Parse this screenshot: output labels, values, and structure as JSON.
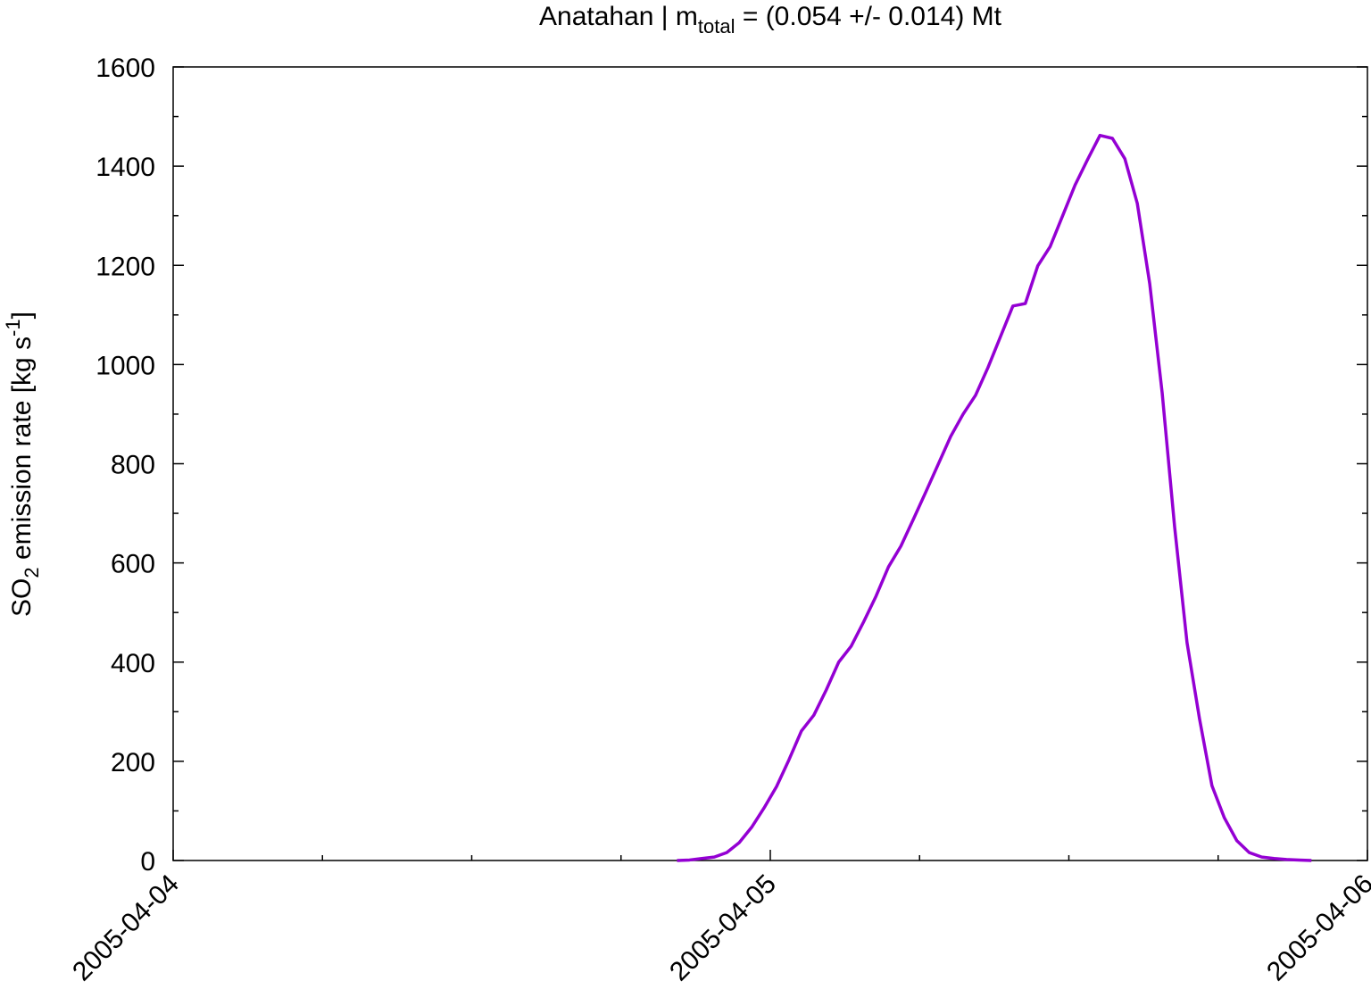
{
  "chart_data": {
    "type": "line",
    "title": [
      "Anatahan | m",
      "total",
      " = (0.054 +/- 0.014) Mt"
    ],
    "ylabel": [
      "SO",
      "2",
      " emission rate [kg s",
      "-1",
      "]"
    ],
    "x": [
      20.25,
      20.75,
      21.25,
      21.75,
      22.25,
      22.75,
      23.25,
      23.75,
      24.25,
      24.75,
      25.25,
      25.75,
      26.25,
      26.75,
      27.25,
      27.75,
      28.25,
      28.75,
      29.25,
      29.75,
      30.25,
      30.75,
      31.25,
      31.75,
      32.25,
      32.75,
      33.25,
      33.75,
      34.25,
      34.75,
      35.25,
      35.75,
      36.25,
      36.75,
      37.25,
      37.75,
      38.25,
      38.75,
      39.25,
      39.75,
      40.25,
      40.75,
      41.25,
      41.75,
      42.25,
      42.75,
      43.25,
      43.75,
      44.25,
      44.75,
      45.25,
      45.75
    ],
    "series": [
      {
        "color": "#9400d3",
        "values": [
          0,
          1,
          4,
          7,
          16,
          36,
          67,
          106,
          149,
          203,
          261,
          293,
          344,
          400,
          432,
          481,
          533,
          592,
          634,
          688,
          743,
          799,
          855,
          900,
          938,
          994,
          1056,
          1118,
          1123,
          1199,
          1238,
          1300,
          1362,
          1413,
          1462,
          1456,
          1415,
          1325,
          1163,
          943,
          673,
          439,
          286,
          151,
          86,
          40,
          16,
          7,
          4,
          2,
          1,
          0
        ]
      }
    ],
    "xlim": [
      0,
      48
    ],
    "xticks": [
      {
        "value": 0,
        "label": "2005-04-04"
      },
      {
        "value": 24,
        "label": "2005-04-05"
      },
      {
        "value": 48,
        "label": "2005-04-06"
      }
    ],
    "xminorticks": [
      6,
      12,
      18,
      30,
      36,
      42
    ],
    "ylim": [
      0,
      1600
    ],
    "yticks": [
      0,
      200,
      400,
      600,
      800,
      1000,
      1200,
      1400,
      1600
    ],
    "yminorticks": [
      100,
      300,
      500,
      700,
      900,
      1100,
      1300,
      1500
    ]
  }
}
